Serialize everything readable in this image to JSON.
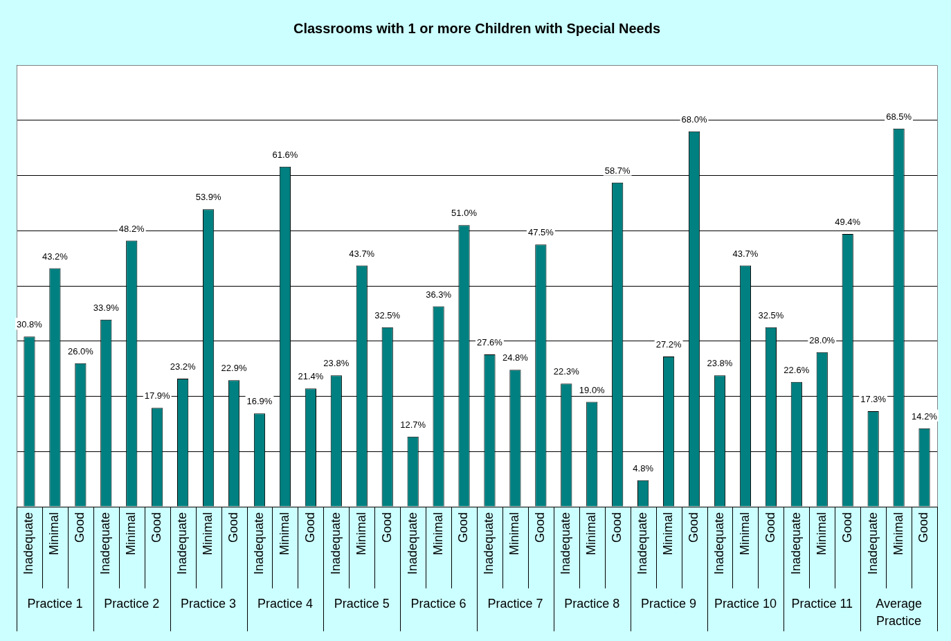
{
  "chart_data": {
    "type": "bar",
    "title": "Classrooms with 1 or more Children with Special Needs",
    "categories": [
      "Inadequate",
      "Minimal",
      "Good",
      "Inadequate",
      "Minimal",
      "Good",
      "Inadequate",
      "Minimal",
      "Good",
      "Inadequate",
      "Minimal",
      "Good",
      "Inadequate",
      "Minimal",
      "Good",
      "Inadequate",
      "Minimal",
      "Good",
      "Inadequate",
      "Minimal",
      "Good",
      "Inadequate",
      "Minimal",
      "Good",
      "Inadequate",
      "Minimal",
      "Good",
      "Inadequate",
      "Minimal",
      "Good",
      "Inadequate",
      "Minimal",
      "Good",
      "Inadequate",
      "Minimal",
      "Good"
    ],
    "values": [
      30.8,
      43.2,
      26.0,
      33.9,
      48.2,
      17.9,
      23.2,
      53.9,
      22.9,
      16.9,
      61.6,
      21.4,
      23.8,
      43.7,
      32.5,
      12.7,
      36.3,
      51.0,
      27.6,
      24.8,
      47.5,
      22.3,
      19.0,
      58.7,
      4.8,
      27.2,
      68.0,
      23.8,
      43.7,
      32.5,
      22.6,
      28.0,
      49.4,
      17.3,
      68.5,
      14.2
    ],
    "value_labels": [
      "30.8%",
      "43.2%",
      "26.0%",
      "33.9%",
      "48.2%",
      "17.9%",
      "23.2%",
      "53.9%",
      "22.9%",
      "16.9%",
      "61.6%",
      "21.4%",
      "23.8%",
      "43.7%",
      "32.5%",
      "12.7%",
      "36.3%",
      "51.0%",
      "27.6%",
      "24.8%",
      "47.5%",
      "22.3%",
      "19.0%",
      "58.7%",
      "4.8%",
      "27.2%",
      "68.0%",
      "23.8%",
      "43.7%",
      "32.5%",
      "22.6%",
      "28.0%",
      "49.4%",
      "17.3%",
      "68.5%",
      "14.2%"
    ],
    "color": "#008080",
    "ylim": [
      0,
      80
    ],
    "yticks": [
      {
        "value": 0,
        "label": null
      },
      {
        "value": 10,
        "label": null
      },
      {
        "value": 20,
        "label": null
      },
      {
        "value": 30,
        "label": null
      },
      {
        "value": 40,
        "label": null
      },
      {
        "value": 50,
        "label": null
      },
      {
        "value": 60,
        "label": null
      },
      {
        "value": 70,
        "label": null
      },
      {
        "value": 80,
        "label": null
      }
    ],
    "grid": "y",
    "legend": false,
    "annotations": [
      "Practice 1",
      "Practice 2",
      "Practice 3",
      "Practice 4",
      "Practice 5",
      "Practice 6",
      "Practice 7",
      "Practice 8",
      "Practice 9",
      "Practice 10",
      "Practice 11",
      "Average Practice"
    ]
  }
}
